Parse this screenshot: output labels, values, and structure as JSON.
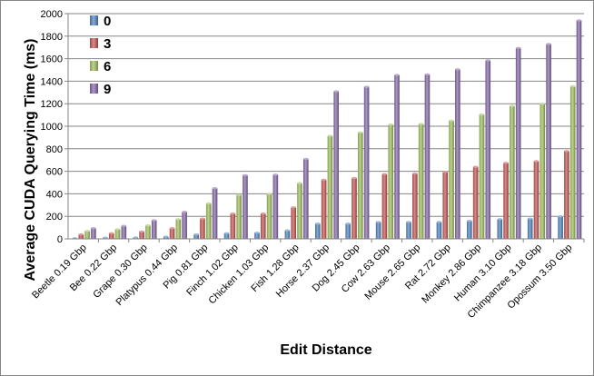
{
  "chart_data": {
    "type": "bar",
    "title": "",
    "xlabel": "Edit Distance",
    "ylabel": "Average CUDA Querying Time (ms)",
    "ylim": [
      0,
      2000
    ],
    "yticks": [
      0,
      200,
      400,
      600,
      800,
      1000,
      1200,
      1400,
      1600,
      1800,
      2000
    ],
    "grid": "horizontal",
    "legend_position": "top-left",
    "categories": [
      "Beetle 0.19 Gbp",
      "Bee 0.22 Gbp",
      "Grape 0.30 Gbp",
      "Platypus 0.44 Gbp",
      "Pig 0.81 Gbp",
      "Finch 1.02 Gbp",
      "Chicken 1.03 Gbp",
      "Fish 1.28 Gbp",
      "Horse 2.37 Gbp",
      "Dog 2.45 Gbp",
      "Cow 2.63 Gbp",
      "Mouse 2.65 Gbp",
      "Rat 2.72 Gbp",
      "Monkey 2.86 Gbp",
      "Human 3.10 Gbp",
      "Chimpanzee 3.18 Gbp",
      "Opossum 3.50 Gbp"
    ],
    "series": [
      {
        "name": "0",
        "color": "#4a7ebb",
        "values": [
          5,
          10,
          12,
          20,
          40,
          50,
          55,
          75,
          135,
          135,
          150,
          150,
          150,
          160,
          175,
          180,
          200
        ]
      },
      {
        "name": "3",
        "color": "#c0504d",
        "values": [
          40,
          50,
          65,
          95,
          180,
          225,
          225,
          280,
          525,
          540,
          575,
          580,
          595,
          640,
          675,
          690,
          780
        ]
      },
      {
        "name": "6",
        "color": "#9bbb59",
        "values": [
          70,
          85,
          120,
          175,
          315,
          390,
          400,
          495,
          915,
          945,
          1015,
          1020,
          1050,
          1105,
          1180,
          1200,
          1355
        ]
      },
      {
        "name": "9",
        "color": "#8064a2",
        "values": [
          95,
          115,
          165,
          240,
          450,
          565,
          570,
          710,
          1310,
          1350,
          1455,
          1460,
          1505,
          1585,
          1695,
          1730,
          1940
        ]
      }
    ]
  }
}
